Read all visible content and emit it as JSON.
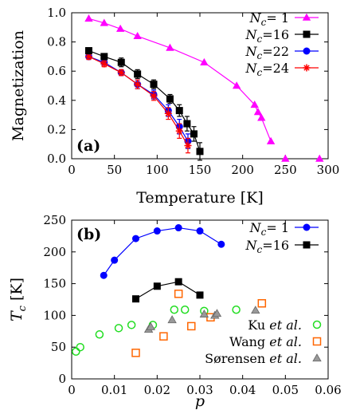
{
  "chart_data": [
    {
      "type": "line",
      "panel_tag": "(a)",
      "xlabel": "Temperature [K]",
      "ylabel": "Magnetization",
      "xlim": [
        0,
        300
      ],
      "ylim": [
        0,
        1.0
      ],
      "xticks": [
        "0",
        "50",
        "100",
        "150",
        "200",
        "250",
        "300"
      ],
      "yticks": [
        "0.0",
        "0.2",
        "0.4",
        "0.6",
        "0.8",
        "1.0"
      ],
      "legend_position": "top-right",
      "series": [
        {
          "name": "N_c=1",
          "legend": {
            "base": "N",
            "sub": "c",
            "rest": "= 1"
          },
          "color": "#ff00ff",
          "marker": "triangle",
          "errorbars": false,
          "x": [
            20,
            38,
            57,
            77,
            115,
            155,
            193,
            214,
            218,
            222,
            233,
            250,
            290
          ],
          "y": [
            0.96,
            0.93,
            0.89,
            0.84,
            0.76,
            0.66,
            0.5,
            0.37,
            0.32,
            0.28,
            0.12,
            0.0,
            0.0
          ],
          "line_points": 11
        },
        {
          "name": "N_c=16",
          "legend": {
            "base": "N",
            "sub": "c",
            "rest": "=16"
          },
          "color": "#000000",
          "marker": "square",
          "errorbars": true,
          "x": [
            20,
            38,
            58,
            77,
            96,
            115,
            126,
            135,
            143,
            150
          ],
          "y": [
            0.74,
            0.7,
            0.66,
            0.58,
            0.51,
            0.41,
            0.33,
            0.24,
            0.17,
            0.05
          ],
          "err": [
            0.02,
            0.02,
            0.03,
            0.03,
            0.03,
            0.03,
            0.04,
            0.05,
            0.05,
            0.06
          ]
        },
        {
          "name": "N_c=22",
          "legend": {
            "base": "N",
            "sub": "c",
            "rest": "=22"
          },
          "color": "#0000ff",
          "marker": "circle",
          "errorbars": true,
          "x": [
            20,
            38,
            58,
            77,
            96,
            113,
            126,
            136
          ],
          "y": [
            0.7,
            0.66,
            0.59,
            0.51,
            0.44,
            0.33,
            0.22,
            0.12
          ],
          "err": [
            0.02,
            0.02,
            0.02,
            0.03,
            0.03,
            0.04,
            0.05,
            0.05
          ]
        },
        {
          "name": "N_c=24",
          "legend": {
            "base": "N",
            "sub": "c",
            "rest": "=24"
          },
          "color": "#ff0000",
          "marker": "star",
          "errorbars": true,
          "x": [
            20,
            38,
            58,
            77,
            96,
            113,
            126,
            136
          ],
          "y": [
            0.7,
            0.65,
            0.59,
            0.51,
            0.43,
            0.31,
            0.19,
            0.09
          ],
          "err": [
            0.02,
            0.02,
            0.02,
            0.03,
            0.03,
            0.04,
            0.05,
            0.05
          ]
        }
      ]
    },
    {
      "type": "scatter",
      "panel_tag": "(b)",
      "xlabel": "p",
      "ylabel": "T_c [K]",
      "xlim": [
        0,
        0.06
      ],
      "ylim": [
        0,
        250
      ],
      "xticks": [
        "0",
        "0.01",
        "0.02",
        "0.03",
        "0.04",
        "0.05",
        "0.06"
      ],
      "yticks": [
        "0",
        "50",
        "100",
        "150",
        "200",
        "250"
      ],
      "legend_position": "top-right (N_c series), bottom-right (experiment series)",
      "series": [
        {
          "name": "N_c=1",
          "legend": {
            "base": "N",
            "sub": "c",
            "rest": "= 1"
          },
          "color": "#0000ff",
          "marker": "circle",
          "connected": true,
          "x": [
            0.0075,
            0.01,
            0.015,
            0.02,
            0.025,
            0.03,
            0.035
          ],
          "y": [
            163,
            187,
            221,
            233,
            238,
            233,
            212
          ]
        },
        {
          "name": "N_c=16",
          "legend": {
            "base": "N",
            "sub": "c",
            "rest": "=16"
          },
          "color": "#000000",
          "marker": "square",
          "connected": true,
          "x": [
            0.015,
            0.02,
            0.025,
            0.03
          ],
          "y": [
            126,
            146,
            153,
            132
          ]
        },
        {
          "name": "Ku et al.",
          "legend": {
            "base": "Ku ",
            "ital": "et al.",
            "rest": ""
          },
          "color": "#22dd22",
          "marker": "open-circle",
          "connected": false,
          "x": [
            0.001,
            0.002,
            0.0065,
            0.011,
            0.014,
            0.019,
            0.024,
            0.0265,
            0.031,
            0.0385
          ],
          "y": [
            43,
            50,
            70,
            80,
            85,
            85,
            109,
            109,
            107,
            109
          ]
        },
        {
          "name": "Wang et al.",
          "legend": {
            "base": "Wang ",
            "ital": "et al.",
            "rest": ""
          },
          "color": "#ff6600",
          "marker": "open-square",
          "connected": false,
          "x": [
            0.015,
            0.0215,
            0.025,
            0.028,
            0.0325,
            0.0445
          ],
          "y": [
            41,
            67,
            134,
            83,
            97,
            119
          ]
        },
        {
          "name": "Sørensen et al.",
          "legend": {
            "base": "Sørensen ",
            "ital": "et al.",
            "rest": ""
          },
          "color": "#999999",
          "marker": "filled-triangle",
          "connected": false,
          "x": [
            0.018,
            0.0185,
            0.0235,
            0.031,
            0.0335,
            0.034,
            0.043
          ],
          "y": [
            78,
            82,
            93,
            102,
            100,
            103,
            108
          ]
        }
      ]
    }
  ]
}
